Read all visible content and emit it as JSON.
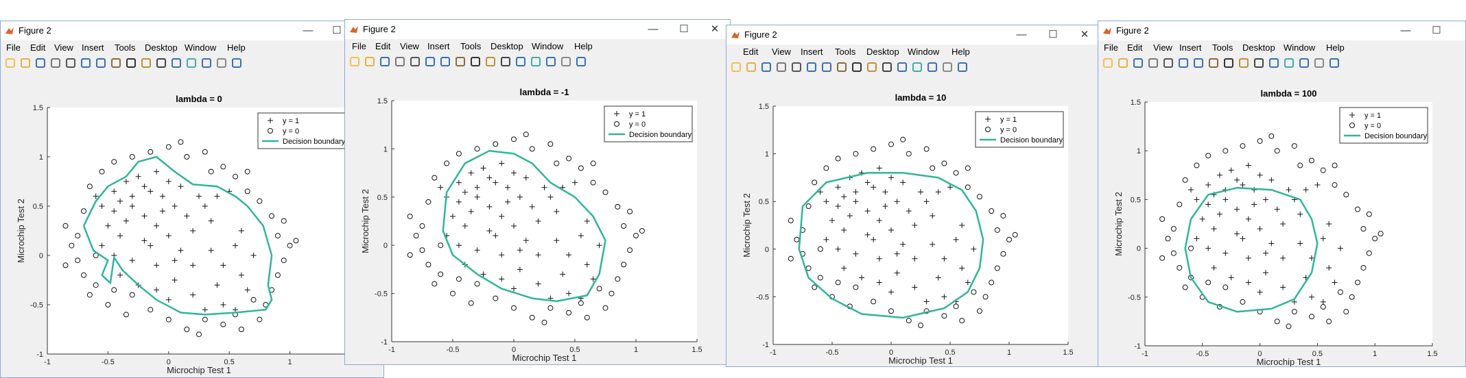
{
  "menu": [
    "File",
    "Edit",
    "View",
    "Insert",
    "Tools",
    "Desktop",
    "Window",
    "Help"
  ],
  "windows": [
    {
      "title": "Figure 2",
      "plot": {
        "title": "lambda = 0"
      },
      "controls": [
        "—",
        "☐",
        "✕"
      ]
    },
    {
      "title": "Figure 2",
      "plot": {
        "title": "lambda = -1"
      },
      "controls": [
        "—",
        "☐",
        "✕"
      ]
    },
    {
      "title": "Figure 2",
      "plot": {
        "title": "lambda = 10"
      },
      "controls": [
        "—",
        "☐",
        "✕"
      ]
    },
    {
      "title": "Figure 2",
      "plot": {
        "title": "lambda = 100"
      },
      "controls": [
        "—",
        "☐",
        "✕"
      ]
    }
  ],
  "legend": {
    "pos": "y = 1",
    "neg": "y = 0",
    "boundary": "Decision boundary"
  },
  "axes": {
    "xlabel": "Microchip Test 1",
    "ylabel": "Microchip Test 2",
    "xticks": [
      "-1",
      "-0.5",
      "0",
      "0.5",
      "1",
      "1.5"
    ],
    "yticks": [
      "1.5",
      "1",
      "0.5",
      "0",
      "-0.5",
      "-1"
    ]
  },
  "colors": {
    "boundary": "#2fb59a",
    "accent": "#4a86c8"
  },
  "chart_data": {
    "type": "scatter",
    "xlim": [
      -1,
      1.5
    ],
    "ylim": [
      -1,
      1.5
    ],
    "positive": [
      [
        -0.6,
        0.6
      ],
      [
        -0.55,
        0.5
      ],
      [
        -0.45,
        0.65
      ],
      [
        -0.4,
        0.55
      ],
      [
        -0.35,
        0.75
      ],
      [
        -0.3,
        0.5
      ],
      [
        -0.25,
        0.8
      ],
      [
        -0.2,
        0.7
      ],
      [
        -0.15,
        0.65
      ],
      [
        -0.1,
        0.85
      ],
      [
        -0.05,
        0.6
      ],
      [
        0.0,
        0.75
      ],
      [
        0.05,
        0.5
      ],
      [
        0.1,
        0.7
      ],
      [
        -0.5,
        0.3
      ],
      [
        -0.4,
        0.2
      ],
      [
        -0.35,
        0.35
      ],
      [
        -0.2,
        0.4
      ],
      [
        -0.1,
        0.3
      ],
      [
        0.0,
        0.2
      ],
      [
        0.15,
        0.4
      ],
      [
        0.2,
        0.25
      ],
      [
        0.3,
        0.5
      ],
      [
        0.35,
        0.35
      ],
      [
        0.4,
        0.6
      ],
      [
        -0.55,
        0.1
      ],
      [
        -0.45,
        0.0
      ],
      [
        -0.3,
        -0.05
      ],
      [
        -0.2,
        0.15
      ],
      [
        -0.1,
        -0.1
      ],
      [
        0.05,
        -0.05
      ],
      [
        0.2,
        -0.1
      ],
      [
        0.35,
        0.05
      ],
      [
        0.45,
        -0.1
      ],
      [
        0.55,
        0.1
      ],
      [
        0.6,
        0.25
      ],
      [
        -0.4,
        -0.2
      ],
      [
        -0.25,
        -0.3
      ],
      [
        -0.1,
        -0.35
      ],
      [
        0.05,
        -0.25
      ],
      [
        0.2,
        -0.4
      ],
      [
        0.3,
        -0.55
      ],
      [
        0.45,
        -0.5
      ],
      [
        0.55,
        -0.55
      ],
      [
        0.6,
        -0.2
      ],
      [
        0.65,
        -0.35
      ],
      [
        0.5,
        0.65
      ],
      [
        -0.15,
        0.1
      ],
      [
        0.0,
        -0.45
      ],
      [
        -0.3,
        0.6
      ],
      [
        0.25,
        0.6
      ],
      [
        0.7,
        0.0
      ],
      [
        -0.45,
        0.45
      ],
      [
        0.1,
        0.05
      ],
      [
        0.4,
        -0.3
      ],
      [
        -0.05,
        0.45
      ]
    ],
    "negative": [
      [
        -0.85,
        0.3
      ],
      [
        -0.75,
        0.2
      ],
      [
        -0.7,
        0.45
      ],
      [
        -0.65,
        0.7
      ],
      [
        -0.55,
        0.85
      ],
      [
        -0.45,
        0.95
      ],
      [
        -0.3,
        1.0
      ],
      [
        -0.15,
        1.05
      ],
      [
        0.0,
        1.1
      ],
      [
        0.15,
        1.0
      ],
      [
        0.3,
        1.05
      ],
      [
        0.45,
        0.9
      ],
      [
        0.55,
        0.8
      ],
      [
        0.65,
        0.65
      ],
      [
        0.75,
        0.55
      ],
      [
        0.85,
        0.4
      ],
      [
        0.9,
        0.2
      ],
      [
        1.0,
        0.1
      ],
      [
        1.05,
        0.15
      ],
      [
        0.95,
        -0.05
      ],
      [
        0.9,
        -0.2
      ],
      [
        0.85,
        -0.35
      ],
      [
        0.8,
        -0.5
      ],
      [
        0.75,
        -0.65
      ],
      [
        0.6,
        -0.75
      ],
      [
        0.45,
        -0.7
      ],
      [
        0.3,
        -0.65
      ],
      [
        0.15,
        -0.75
      ],
      [
        0.0,
        -0.65
      ],
      [
        -0.15,
        -0.55
      ],
      [
        -0.3,
        -0.4
      ],
      [
        -0.45,
        -0.35
      ],
      [
        -0.6,
        -0.3
      ],
      [
        -0.7,
        -0.2
      ],
      [
        -0.75,
        -0.05
      ],
      [
        -0.8,
        0.1
      ],
      [
        -0.65,
        -0.4
      ],
      [
        -0.5,
        -0.5
      ],
      [
        -0.35,
        -0.6
      ],
      [
        0.25,
        -0.8
      ],
      [
        0.55,
        -0.6
      ],
      [
        0.7,
        -0.45
      ],
      [
        0.95,
        0.35
      ],
      [
        -0.85,
        -0.1
      ],
      [
        0.35,
        0.85
      ],
      [
        -0.6,
        0.0
      ],
      [
        0.1,
        1.15
      ],
      [
        0.65,
        0.85
      ]
    ],
    "boundaries": [
      [
        [
          -0.7,
          0.3
        ],
        [
          -0.6,
          0.55
        ],
        [
          -0.5,
          0.7
        ],
        [
          -0.35,
          0.8
        ],
        [
          -0.25,
          0.95
        ],
        [
          -0.1,
          1.0
        ],
        [
          0.05,
          0.85
        ],
        [
          0.2,
          0.72
        ],
        [
          0.4,
          0.7
        ],
        [
          0.55,
          0.6
        ],
        [
          0.65,
          0.5
        ],
        [
          0.78,
          0.3
        ],
        [
          0.85,
          0.0
        ],
        [
          0.82,
          -0.3
        ],
        [
          0.85,
          -0.45
        ],
        [
          0.8,
          -0.55
        ],
        [
          0.55,
          -0.58
        ],
        [
          0.3,
          -0.6
        ],
        [
          0.1,
          -0.58
        ],
        [
          -0.1,
          -0.45
        ],
        [
          -0.25,
          -0.3
        ],
        [
          -0.38,
          -0.15
        ],
        [
          -0.45,
          -0.02
        ],
        [
          -0.48,
          -0.28
        ],
        [
          -0.55,
          -0.2
        ],
        [
          -0.5,
          -0.05
        ],
        [
          -0.62,
          0.05
        ],
        [
          -0.7,
          0.3
        ]
      ],
      [
        [
          -0.55,
          0.55
        ],
        [
          -0.4,
          0.85
        ],
        [
          -0.2,
          0.98
        ],
        [
          0.0,
          0.95
        ],
        [
          0.15,
          0.85
        ],
        [
          0.3,
          0.65
        ],
        [
          0.5,
          0.5
        ],
        [
          0.65,
          0.3
        ],
        [
          0.75,
          0.05
        ],
        [
          0.7,
          -0.3
        ],
        [
          0.6,
          -0.52
        ],
        [
          0.35,
          -0.58
        ],
        [
          0.15,
          -0.55
        ],
        [
          -0.1,
          -0.45
        ],
        [
          -0.3,
          -0.3
        ],
        [
          -0.5,
          -0.1
        ],
        [
          -0.58,
          0.15
        ],
        [
          -0.55,
          0.55
        ]
      ],
      [
        [
          -0.75,
          0.45
        ],
        [
          -0.55,
          0.7
        ],
        [
          -0.2,
          0.8
        ],
        [
          0.1,
          0.8
        ],
        [
          0.4,
          0.75
        ],
        [
          0.6,
          0.62
        ],
        [
          0.72,
          0.4
        ],
        [
          0.78,
          0.1
        ],
        [
          0.75,
          -0.2
        ],
        [
          0.65,
          -0.45
        ],
        [
          0.45,
          -0.62
        ],
        [
          0.1,
          -0.72
        ],
        [
          -0.25,
          -0.68
        ],
        [
          -0.5,
          -0.52
        ],
        [
          -0.7,
          -0.3
        ],
        [
          -0.78,
          0.0
        ],
        [
          -0.75,
          0.45
        ]
      ],
      [
        [
          -0.6,
          0.3
        ],
        [
          -0.45,
          0.55
        ],
        [
          -0.2,
          0.62
        ],
        [
          0.1,
          0.6
        ],
        [
          0.35,
          0.5
        ],
        [
          0.45,
          0.3
        ],
        [
          0.5,
          0.05
        ],
        [
          0.45,
          -0.25
        ],
        [
          0.3,
          -0.52
        ],
        [
          0.1,
          -0.62
        ],
        [
          -0.2,
          -0.65
        ],
        [
          -0.45,
          -0.55
        ],
        [
          -0.6,
          -0.3
        ],
        [
          -0.65,
          0.0
        ],
        [
          -0.6,
          0.3
        ]
      ]
    ]
  }
}
